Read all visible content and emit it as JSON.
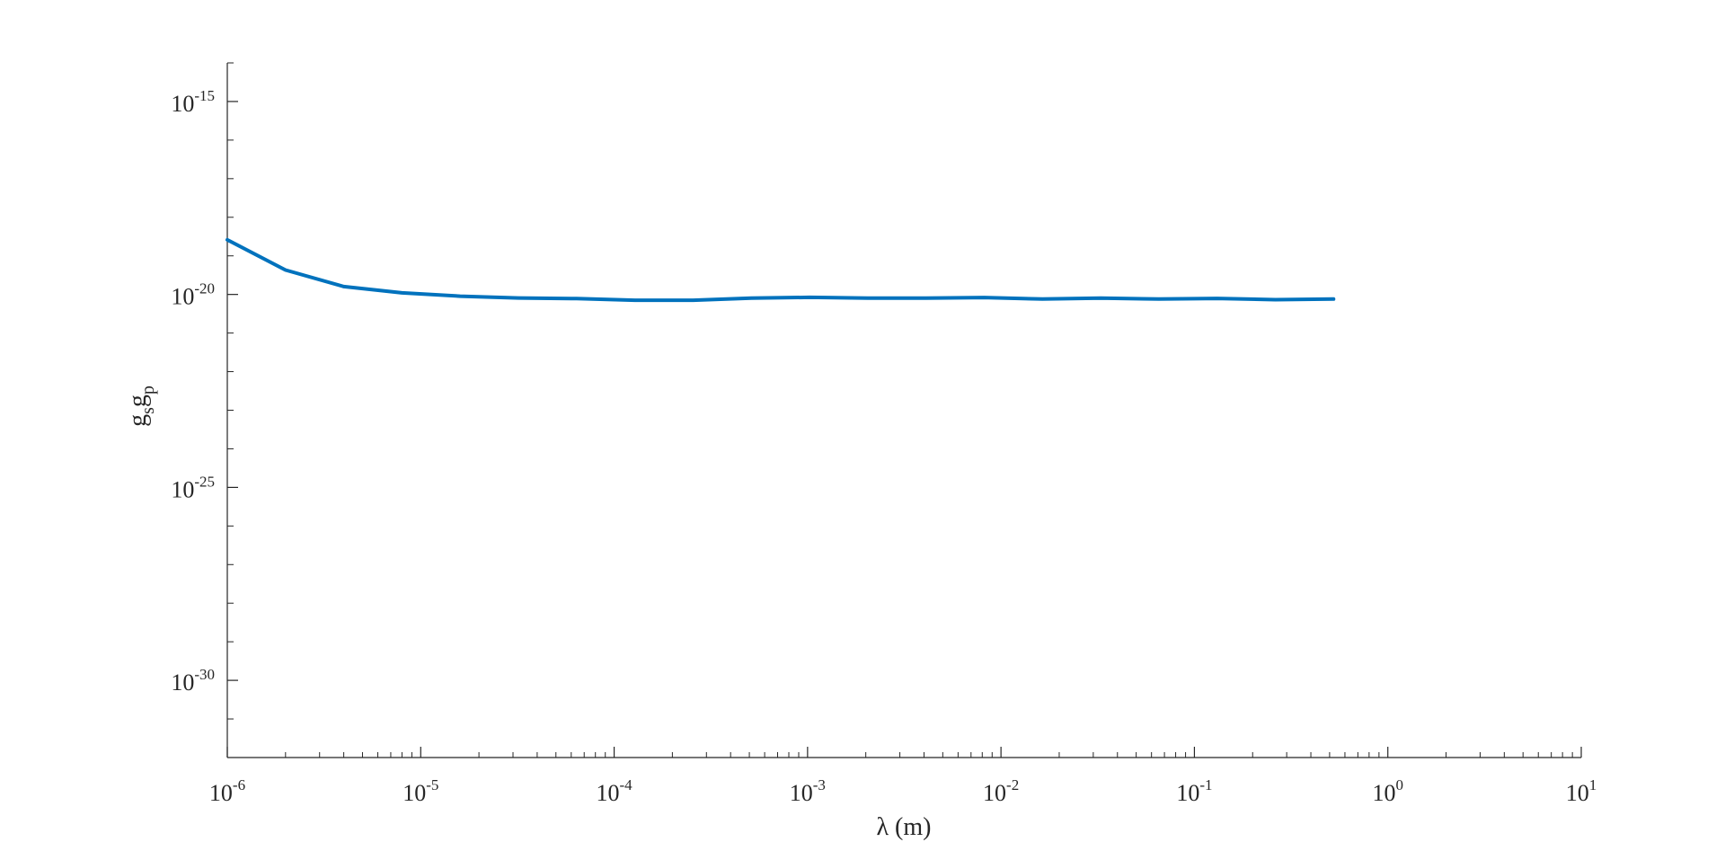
{
  "chart_data": {
    "type": "line",
    "title": "",
    "xlabel": "λ (m)",
    "ylabel": {
      "main1": "g",
      "sub1": "s",
      "main2": "g",
      "sub2": "p"
    },
    "xscale": "log",
    "yscale": "log",
    "xlim": [
      1e-06,
      10
    ],
    "ylim": [
      1e-32,
      1e-14
    ],
    "grid": false,
    "legend": "none",
    "x_ticks": [
      {
        "base": "10",
        "exp": "-6"
      },
      {
        "base": "10",
        "exp": "-5"
      },
      {
        "base": "10",
        "exp": "-4"
      },
      {
        "base": "10",
        "exp": "-3"
      },
      {
        "base": "10",
        "exp": "-2"
      },
      {
        "base": "10",
        "exp": "-1"
      },
      {
        "base": "10",
        "exp": "0"
      },
      {
        "base": "10",
        "exp": "1"
      }
    ],
    "y_ticks": [
      {
        "base": "10",
        "exp": "-15"
      },
      {
        "base": "10",
        "exp": "-20"
      },
      {
        "base": "10",
        "exp": "-25"
      },
      {
        "base": "10",
        "exp": "-30"
      }
    ],
    "series": [
      {
        "color": "#0072BD",
        "x": [
          1e-06,
          2e-06,
          4e-06,
          8e-06,
          1.6e-05,
          3.2e-05,
          6.4e-05,
          0.000128,
          0.000256,
          0.000512,
          0.001024,
          0.002048,
          0.004096,
          0.008192,
          0.016384,
          0.032768,
          0.065536,
          0.131072,
          0.262144,
          0.524288
        ],
        "y": [
          2.6e-19,
          4.3e-20,
          1.6e-20,
          1.1e-20,
          9e-21,
          8.1e-21,
          7.8e-21,
          7.1e-21,
          7.1e-21,
          8e-21,
          8.4e-21,
          8e-21,
          8e-21,
          8.3e-21,
          7.6e-21,
          8e-21,
          7.6e-21,
          7.9e-21,
          7.3e-21,
          7.6e-21
        ]
      }
    ]
  }
}
